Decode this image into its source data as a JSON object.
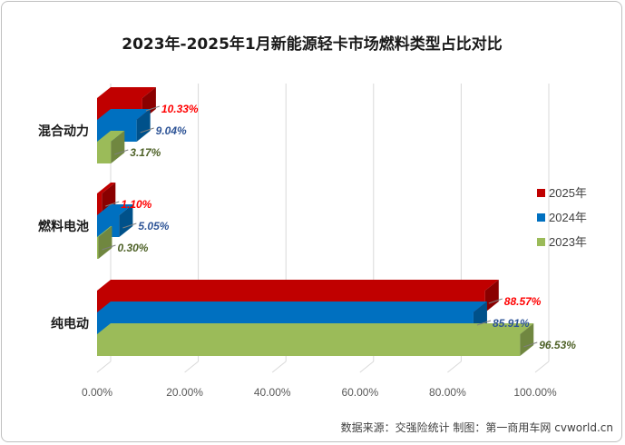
{
  "chart_data": {
    "type": "bar",
    "orientation": "horizontal",
    "title": "2023年-2025年1月新能源轻卡市场燃料类型占比对比",
    "categories": [
      "混合动力",
      "燃料电池",
      "纯电动"
    ],
    "series": [
      {
        "name": "2025年",
        "color": "#c00000",
        "label_color": "#ff0000",
        "values": [
          10.33,
          1.1,
          88.57
        ],
        "labels": [
          "10.33%",
          "1.10%",
          "88.57%"
        ]
      },
      {
        "name": "2024年",
        "color": "#0070c0",
        "label_color": "#2f5597",
        "values": [
          9.04,
          5.05,
          85.91
        ],
        "labels": [
          "9.04%",
          "5.05%",
          "85.91%"
        ]
      },
      {
        "name": "2023年",
        "color": "#9bbb59",
        "label_color": "#4f6228",
        "values": [
          3.17,
          0.3,
          96.53
        ],
        "labels": [
          "3.17%",
          "0.30%",
          "96.53%"
        ]
      }
    ],
    "x_ticks": [
      "0.00%",
      "20.00%",
      "40.00%",
      "60.00%",
      "80.00%",
      "100.00%"
    ],
    "xlim": [
      0,
      100
    ],
    "grid": true,
    "legend_position": "right",
    "style": "3d-bar"
  },
  "source_note": "数据来源：交强险统计 制图：第一商用车网 cvworld.cn"
}
